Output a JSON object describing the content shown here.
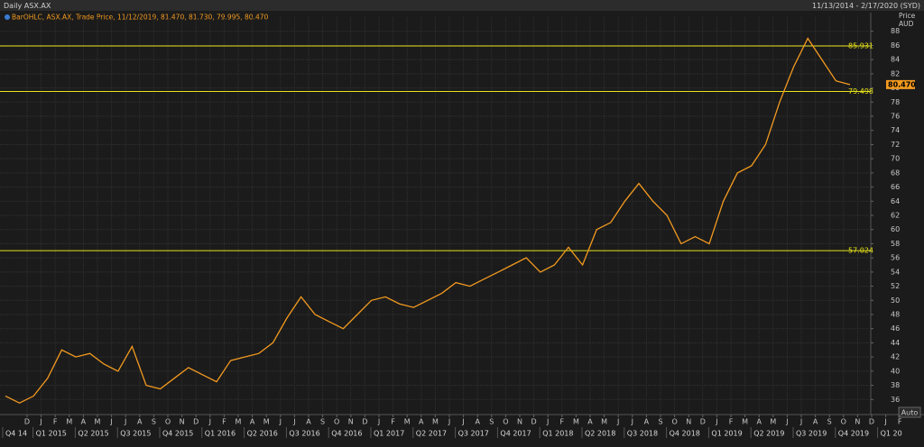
{
  "chart_data": {
    "type": "line",
    "title": "Daily ASX.AX",
    "date_range": "11/13/2014 - 2/17/2020 (SYD)",
    "subtitle": "BarOHLC, ASX.AX, Trade Price, 11/12/2019, 81.470, 81.730, 79.995, 80.470",
    "y_axis_label": "Price",
    "y_axis_unit": "AUD",
    "auto_button": "Auto",
    "month_labels": [
      "D",
      "J",
      "F",
      "M",
      "A",
      "M",
      "J",
      "J",
      "A",
      "S",
      "O",
      "N",
      "D",
      "J",
      "F",
      "M",
      "A",
      "M",
      "J",
      "J",
      "A",
      "S",
      "O",
      "N",
      "D",
      "J",
      "F",
      "M",
      "A",
      "M",
      "J",
      "J",
      "A",
      "S",
      "O",
      "N",
      "D",
      "J",
      "F",
      "M",
      "A",
      "M",
      "J",
      "J",
      "A",
      "S",
      "O",
      "N",
      "D",
      "J",
      "F",
      "M",
      "A",
      "M",
      "J",
      "J",
      "A",
      "S",
      "O",
      "N",
      "D",
      "J",
      "F"
    ],
    "quarter_labels": [
      "Q4 14",
      "Q1 2015",
      "Q2 2015",
      "Q3 2015",
      "Q4 2015",
      "Q1 2016",
      "Q2 2016",
      "Q3 2016",
      "Q4 2016",
      "Q1 2017",
      "Q2 2017",
      "Q3 2017",
      "Q4 2017",
      "Q1 2018",
      "Q2 2018",
      "Q3 2018",
      "Q4 2018",
      "Q1 2019",
      "Q2 2019",
      "Q3 2019",
      "Q4 2019",
      "Q1 20"
    ],
    "series": [
      {
        "name": "ASX.AX",
        "color": "#f39a1f",
        "values": [
          36.5,
          35.5,
          36.5,
          39,
          43,
          42,
          42.5,
          41,
          40,
          43.5,
          38,
          37.5,
          39,
          40.5,
          39.5,
          38.5,
          41.5,
          42,
          42.5,
          44,
          47.5,
          50.5,
          48,
          47,
          46,
          48,
          50,
          50.5,
          49.5,
          49,
          50,
          51,
          52.5,
          52,
          53,
          54,
          55,
          56,
          54,
          55,
          57.5,
          55,
          60,
          61,
          64,
          66.5,
          64,
          62,
          58,
          59,
          58,
          64,
          68,
          69,
          72,
          78,
          83,
          87,
          84,
          81,
          80.47
        ]
      }
    ],
    "last_price": {
      "value": 80.47,
      "label": "80.470"
    },
    "hlines": [
      85.931,
      79.498,
      57.024
    ],
    "hline_color": "#e6e21a",
    "ylim": [
      34,
      90
    ],
    "yticks": [
      36,
      38,
      40,
      42,
      44,
      46,
      48,
      50,
      52,
      54,
      56,
      58,
      60,
      62,
      64,
      66,
      68,
      70,
      72,
      74,
      76,
      78,
      80,
      82,
      84,
      86,
      88
    ],
    "grid": true
  }
}
